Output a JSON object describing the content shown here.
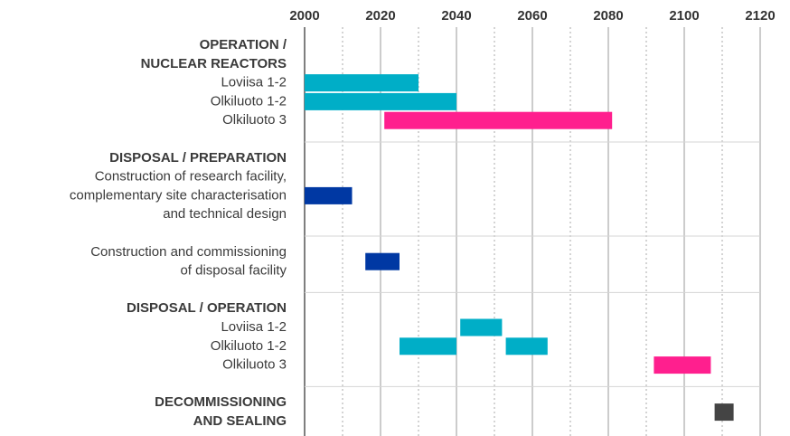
{
  "chart_data": {
    "type": "gantt",
    "xlim": [
      2000,
      2120
    ],
    "xticks": [
      2000,
      2020,
      2040,
      2060,
      2080,
      2100,
      2120
    ],
    "minor_xticks": [
      2010,
      2030,
      2050,
      2070,
      2090,
      2110
    ],
    "grid": true,
    "blocks": [
      {
        "title": [
          "OPERATION /",
          "NUCLEAR REACTORS"
        ],
        "tasks": [
          {
            "label": [
              "Loviisa 1-2"
            ],
            "color": "#00aec7",
            "bars": [
              {
                "start": 2000,
                "end": 2030
              }
            ]
          },
          {
            "label": [
              "Olkiluoto 1-2"
            ],
            "color": "#00aec7",
            "bars": [
              {
                "start": 2000,
                "end": 2040
              }
            ]
          },
          {
            "label": [
              "Olkiluoto 3"
            ],
            "color": "#ff1f8e",
            "bars": [
              {
                "start": 2021,
                "end": 2081
              }
            ]
          }
        ]
      },
      {
        "title": [
          "DISPOSAL / PREPARATION"
        ],
        "tasks": [
          {
            "label": [
              "Construction of research facility,",
              "complementary site characterisation",
              "and technical design"
            ],
            "color": "#0038a3",
            "bars": [
              {
                "start": 2000,
                "end": 2012.5
              }
            ]
          }
        ]
      },
      {
        "tasks": [
          {
            "label": [
              "Construction and commissioning",
              "of disposal facility"
            ],
            "color": "#0038a3",
            "bars": [
              {
                "start": 2016,
                "end": 2025
              }
            ]
          }
        ]
      },
      {
        "title": [
          "DISPOSAL / OPERATION"
        ],
        "tasks": [
          {
            "label": [
              "Loviisa 1-2"
            ],
            "color": "#00aec7",
            "bars": [
              {
                "start": 2041,
                "end": 2052
              }
            ]
          },
          {
            "label": [
              "Olkiluoto 1-2"
            ],
            "color": "#00aec7",
            "bars": [
              {
                "start": 2025,
                "end": 2040
              },
              {
                "start": 2053,
                "end": 2064
              }
            ]
          },
          {
            "label": [
              "Olkiluoto 3"
            ],
            "color": "#ff1f8e",
            "bars": [
              {
                "start": 2092,
                "end": 2107
              }
            ]
          }
        ]
      },
      {
        "title": [
          "DECOMMISSIONING",
          "AND SEALING"
        ],
        "color": "#444444",
        "bars": [
          {
            "start": 2108,
            "end": 2113
          }
        ]
      }
    ]
  }
}
